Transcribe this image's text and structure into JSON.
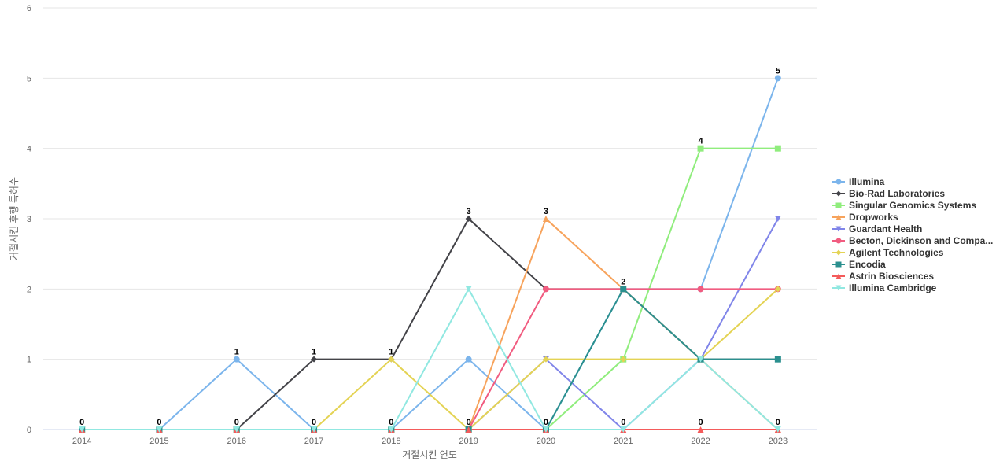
{
  "chart_data": {
    "type": "line",
    "x_label": "거절시킨 연도",
    "y_label": "거절시킨 후행 특허수",
    "categories": [
      "2014",
      "2015",
      "2016",
      "2017",
      "2018",
      "2019",
      "2020",
      "2021",
      "2022",
      "2023"
    ],
    "ylim": [
      0,
      6
    ],
    "yticks": [
      0,
      1,
      2,
      3,
      4,
      5,
      6
    ],
    "grid": true,
    "series": [
      {
        "name": "Illumina",
        "color": "#7cb5ec",
        "marker": "circle",
        "values": [
          0,
          0,
          1,
          0,
          0,
          1,
          0,
          2,
          2,
          5
        ]
      },
      {
        "name": "Bio-Rad Laboratories",
        "color": "#434348",
        "marker": "diamond",
        "values": [
          0,
          0,
          0,
          1,
          1,
          3,
          2,
          2,
          1,
          1
        ]
      },
      {
        "name": "Singular Genomics Systems",
        "color": "#90ed7d",
        "marker": "square",
        "values": [
          0,
          0,
          0,
          0,
          0,
          0,
          0,
          1,
          4,
          4
        ]
      },
      {
        "name": "Dropworks",
        "color": "#f7a35c",
        "marker": "triangle",
        "values": [
          0,
          0,
          0,
          0,
          0,
          0,
          3,
          2,
          1,
          0
        ]
      },
      {
        "name": "Guardant Health",
        "color": "#8085e9",
        "marker": "triangle-down",
        "values": [
          0,
          0,
          0,
          0,
          0,
          0,
          1,
          0,
          1,
          3
        ]
      },
      {
        "name": "Becton, Dickinson and Compa...",
        "color": "#f15c80",
        "marker": "circle",
        "values": [
          0,
          0,
          0,
          0,
          0,
          0,
          2,
          2,
          2,
          2
        ]
      },
      {
        "name": "Agilent Technologies",
        "color": "#e4d354",
        "marker": "diamond",
        "values": [
          0,
          0,
          0,
          0,
          1,
          0,
          1,
          1,
          1,
          2
        ]
      },
      {
        "name": "Encodia",
        "color": "#2b908f",
        "marker": "square",
        "values": [
          0,
          0,
          0,
          0,
          0,
          0,
          0,
          2,
          1,
          1
        ]
      },
      {
        "name": "Astrin Biosciences",
        "color": "#f45b5b",
        "marker": "triangle",
        "values": [
          0,
          0,
          0,
          0,
          0,
          0,
          0,
          0,
          0,
          0
        ]
      },
      {
        "name": "Illumina Cambridge",
        "color": "#91e8e1",
        "marker": "triangle-down",
        "values": [
          0,
          0,
          0,
          0,
          0,
          2,
          0,
          0,
          1,
          0
        ]
      }
    ]
  }
}
